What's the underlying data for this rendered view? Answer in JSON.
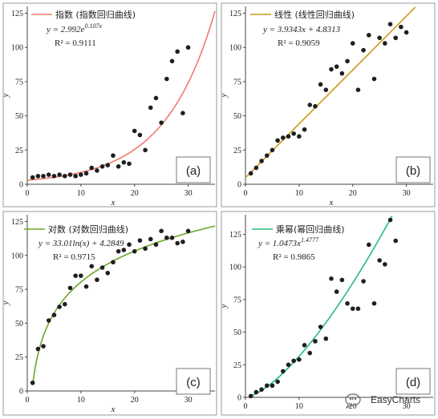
{
  "chart_data": [
    {
      "type": "scatter",
      "panel_label": "(a)",
      "legend": "指数 (指数回归曲线)",
      "equation": "y = 2.992e",
      "equation_exp": "0.107x",
      "r2_label": "R² = 0.9111",
      "xlabel": "x",
      "ylabel": "y",
      "xlim": [
        0,
        35
      ],
      "ylim": [
        0,
        130
      ],
      "xticks": [
        0,
        10,
        20,
        30
      ],
      "yticks": [
        0,
        25,
        50,
        75,
        100,
        125
      ],
      "fit": {
        "kind": "exp",
        "a": 2.992,
        "b": 0.107
      },
      "line_color": "#f07a6e",
      "points": [
        [
          1,
          5
        ],
        [
          2,
          6
        ],
        [
          3,
          6
        ],
        [
          4,
          7
        ],
        [
          5,
          6
        ],
        [
          6,
          7
        ],
        [
          7,
          6
        ],
        [
          8,
          7
        ],
        [
          9,
          6
        ],
        [
          10,
          7
        ],
        [
          11,
          8
        ],
        [
          12,
          12
        ],
        [
          13,
          10
        ],
        [
          14,
          13
        ],
        [
          15,
          14
        ],
        [
          16,
          21
        ],
        [
          17,
          13
        ],
        [
          18,
          16
        ],
        [
          19,
          15
        ],
        [
          20,
          39
        ],
        [
          21,
          36
        ],
        [
          22,
          25
        ],
        [
          23,
          56
        ],
        [
          24,
          63
        ],
        [
          25,
          45
        ],
        [
          26,
          77
        ],
        [
          27,
          90
        ],
        [
          28,
          97
        ],
        [
          29,
          52
        ],
        [
          30,
          100
        ]
      ],
      "grid": false,
      "legend_position": "top-left"
    },
    {
      "type": "scatter",
      "panel_label": "(b)",
      "legend": "线性 (线性回归曲线)",
      "equation": "y = 3.9343x + 4.8313",
      "equation_exp": "",
      "r2_label": "R² = 0.9059",
      "xlabel": "x",
      "ylabel": "y",
      "xlim": [
        0,
        35
      ],
      "ylim": [
        0,
        130
      ],
      "xticks": [
        0,
        10,
        20,
        30
      ],
      "yticks": [
        0,
        25,
        50,
        75,
        100,
        125
      ],
      "fit": {
        "kind": "linear",
        "a": 3.9343,
        "b": 4.8313
      },
      "line_color": "#c99a17",
      "points": [
        [
          1,
          8
        ],
        [
          2,
          12
        ],
        [
          3,
          17
        ],
        [
          4,
          21
        ],
        [
          5,
          25
        ],
        [
          6,
          32
        ],
        [
          7,
          34
        ],
        [
          8,
          35
        ],
        [
          9,
          37
        ],
        [
          10,
          35
        ],
        [
          11,
          40
        ],
        [
          12,
          58
        ],
        [
          13,
          57
        ],
        [
          14,
          73
        ],
        [
          15,
          69
        ],
        [
          16,
          84
        ],
        [
          17,
          86
        ],
        [
          18,
          81
        ],
        [
          19,
          90
        ],
        [
          20,
          103
        ],
        [
          21,
          69
        ],
        [
          22,
          98
        ],
        [
          23,
          109
        ],
        [
          24,
          77
        ],
        [
          25,
          107
        ],
        [
          26,
          103
        ],
        [
          27,
          117
        ],
        [
          28,
          107
        ],
        [
          29,
          115
        ],
        [
          30,
          111
        ]
      ],
      "grid": false,
      "legend_position": "top-left"
    },
    {
      "type": "scatter",
      "panel_label": "(c)",
      "legend": "对数 (对数回归曲线)",
      "equation": "y = 33.01ln(x) + 4.2849",
      "equation_exp": "",
      "r2_label": "R² = 0.9715",
      "xlabel": "x",
      "ylabel": "y",
      "xlim": [
        0,
        35
      ],
      "ylim": [
        0,
        130
      ],
      "xticks": [
        0,
        10,
        20,
        30
      ],
      "yticks": [
        0,
        25,
        50,
        75,
        100,
        125
      ],
      "fit": {
        "kind": "log",
        "a": 33.01,
        "b": 4.2849
      },
      "line_color": "#6aa628",
      "points": [
        [
          1,
          6
        ],
        [
          2,
          31
        ],
        [
          3,
          33
        ],
        [
          4,
          52
        ],
        [
          5,
          56
        ],
        [
          6,
          62
        ],
        [
          7,
          64
        ],
        [
          8,
          76
        ],
        [
          9,
          85
        ],
        [
          10,
          85
        ],
        [
          11,
          77
        ],
        [
          12,
          92
        ],
        [
          13,
          82
        ],
        [
          14,
          91
        ],
        [
          15,
          87
        ],
        [
          16,
          95
        ],
        [
          17,
          103
        ],
        [
          18,
          104
        ],
        [
          19,
          108
        ],
        [
          20,
          103
        ],
        [
          21,
          111
        ],
        [
          22,
          105
        ],
        [
          23,
          112
        ],
        [
          24,
          108
        ],
        [
          25,
          118
        ],
        [
          26,
          113
        ],
        [
          27,
          113
        ],
        [
          28,
          109
        ],
        [
          29,
          110
        ],
        [
          30,
          118
        ]
      ],
      "grid": false,
      "legend_position": "top-left"
    },
    {
      "type": "scatter",
      "panel_label": "(d)",
      "legend": "乘幂(幂回归曲线)",
      "equation": "y = 1.0473x",
      "equation_exp": "1.4777",
      "r2_label": "R² = 0.9865",
      "xlabel": "",
      "ylabel": "y",
      "xlim": [
        0,
        35
      ],
      "ylim": [
        0,
        140
      ],
      "xticks": [
        0,
        10,
        20,
        30
      ],
      "yticks": [
        0,
        25,
        50,
        75,
        100,
        125
      ],
      "fit": {
        "kind": "power",
        "a": 1.0473,
        "b": 1.4777
      },
      "line_color": "#25bd7a",
      "points": [
        [
          1,
          1
        ],
        [
          2,
          4
        ],
        [
          3,
          6
        ],
        [
          4,
          9
        ],
        [
          5,
          9
        ],
        [
          6,
          12
        ],
        [
          7,
          20
        ],
        [
          8,
          25
        ],
        [
          9,
          28
        ],
        [
          10,
          29
        ],
        [
          11,
          40
        ],
        [
          12,
          34
        ],
        [
          13,
          43
        ],
        [
          14,
          54
        ],
        [
          15,
          45
        ],
        [
          16,
          91
        ],
        [
          17,
          81
        ],
        [
          18,
          90
        ],
        [
          19,
          72
        ],
        [
          20,
          68
        ],
        [
          21,
          68
        ],
        [
          22,
          89
        ],
        [
          23,
          117
        ],
        [
          24,
          72
        ],
        [
          25,
          105
        ],
        [
          26,
          102
        ],
        [
          27,
          136
        ],
        [
          28,
          120
        ]
      ],
      "grid": false,
      "legend_position": "top-left"
    }
  ],
  "watermark": {
    "text": "EasyCharts"
  }
}
